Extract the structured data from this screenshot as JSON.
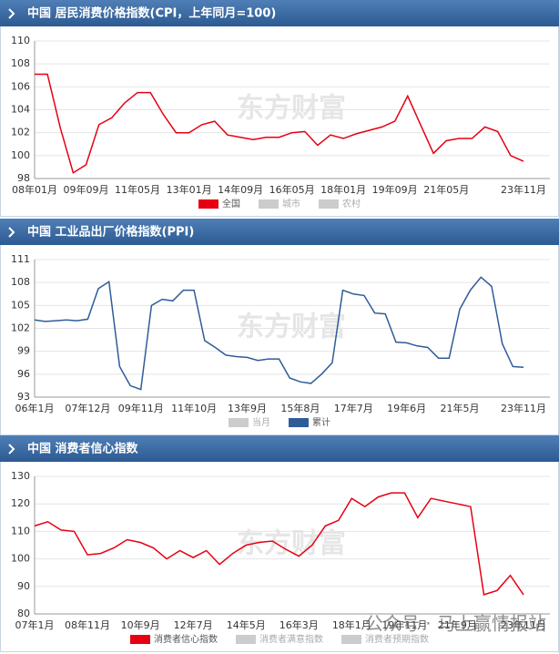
{
  "chart_data": [
    {
      "type": "line",
      "title": "中国 居民消费价格指数(CPI，上年同月=100)",
      "watermark": "东方财富",
      "categories": [
        "08年01月",
        null,
        null,
        null,
        "09年09月",
        null,
        null,
        null,
        "11年05月",
        null,
        null,
        null,
        "13年01月",
        null,
        null,
        null,
        "14年09月",
        null,
        null,
        null,
        "16年05月",
        null,
        null,
        null,
        "18年01月",
        null,
        null,
        null,
        "19年09月",
        null,
        null,
        null,
        "21年05月",
        null,
        null,
        null,
        null,
        null,
        "23年11月"
      ],
      "series": [
        {
          "name": "全国",
          "color": "#e60012",
          "values": [
            107.1,
            107.1,
            102.4,
            98.5,
            99.2,
            102.7,
            103.3,
            104.6,
            105.5,
            105.5,
            103.6,
            102.0,
            102.0,
            102.7,
            103.0,
            101.8,
            101.6,
            101.4,
            101.6,
            101.6,
            102.0,
            102.1,
            100.9,
            101.8,
            101.5,
            101.9,
            102.2,
            102.5,
            103.0,
            105.2,
            102.7,
            100.2,
            101.3,
            101.5,
            101.5,
            102.5,
            102.1,
            100.0,
            99.5
          ]
        }
      ],
      "inactive_legend": [
        {
          "name": "城市",
          "color": "#cccccc"
        },
        {
          "name": "农村",
          "color": "#cccccc"
        }
      ],
      "ylim": [
        98,
        110
      ],
      "yticks": [
        98,
        100,
        102,
        104,
        106,
        108,
        110
      ],
      "grid": true
    },
    {
      "type": "line",
      "title": "中国 工业品出厂价格指数(PPI)",
      "watermark": "东方财富",
      "categories": [
        "06年1月",
        null,
        null,
        null,
        null,
        "07年12月",
        null,
        null,
        null,
        null,
        "09年11月",
        null,
        null,
        null,
        null,
        "11年10月",
        null,
        null,
        null,
        null,
        "13年9月",
        null,
        null,
        null,
        null,
        "15年8月",
        null,
        null,
        null,
        null,
        "17年7月",
        null,
        null,
        null,
        null,
        "19年6月",
        null,
        null,
        null,
        null,
        "21年5月",
        null,
        null,
        null,
        null,
        null,
        "23年11月"
      ],
      "series": [
        {
          "name": "累计",
          "color": "#2e5c99",
          "values": [
            103.1,
            102.9,
            103.0,
            103.1,
            103.0,
            103.2,
            107.2,
            108.1,
            97.0,
            94.5,
            94.0,
            105.0,
            105.8,
            105.6,
            107.0,
            107.0,
            100.4,
            99.5,
            98.5,
            98.3,
            98.2,
            97.8,
            98.0,
            98.0,
            95.5,
            95.0,
            94.8,
            96.0,
            97.5,
            107.0,
            106.5,
            106.3,
            104.0,
            103.9,
            100.2,
            100.1,
            99.7,
            99.5,
            98.1,
            98.1,
            104.5,
            107.0,
            108.7,
            107.5,
            100.0,
            97.0,
            96.9
          ]
        }
      ],
      "inactive_legend": [
        {
          "name": "当月",
          "color": "#cccccc"
        }
      ],
      "legend_first_inactive": true,
      "ylim": [
        93,
        111
      ],
      "yticks": [
        93,
        96,
        99,
        102,
        105,
        108,
        111
      ],
      "grid": true
    },
    {
      "type": "line",
      "title": "中国 消费者信心指数",
      "watermark": "东方财富",
      "footer_watermark": "公众号 · 马上赢情报站",
      "categories": [
        "07年1月",
        null,
        null,
        null,
        "08年11月",
        null,
        null,
        null,
        "10年9月",
        null,
        null,
        null,
        "12年7月",
        null,
        null,
        null,
        "14年5月",
        null,
        null,
        null,
        "16年3月",
        null,
        null,
        null,
        "18年1月",
        null,
        null,
        null,
        "19年11月",
        null,
        null,
        null,
        "21年9月",
        null,
        null,
        null,
        null,
        "23年11月"
      ],
      "series": [
        {
          "name": "消费者信心指数",
          "color": "#e60012",
          "values": [
            112.0,
            113.5,
            110.5,
            110.0,
            101.5,
            102.0,
            104.0,
            107.0,
            106.0,
            104.0,
            100.0,
            103.0,
            100.5,
            103.0,
            98.0,
            102.0,
            105.0,
            106.0,
            106.5,
            103.5,
            101.0,
            105.0,
            112.0,
            114.0,
            122.0,
            119.0,
            122.5,
            124.0,
            124.0,
            115.0,
            122.0,
            121.0,
            120.0,
            119.0,
            87.0,
            88.5,
            94.0,
            87.0
          ]
        }
      ],
      "inactive_legend": [
        {
          "name": "消费者满意指数",
          "color": "#cccccc"
        },
        {
          "name": "消费者预期指数",
          "color": "#cccccc"
        }
      ],
      "ylim": [
        80,
        130
      ],
      "yticks": [
        80,
        90,
        100,
        110,
        120,
        130
      ],
      "grid": true
    }
  ]
}
